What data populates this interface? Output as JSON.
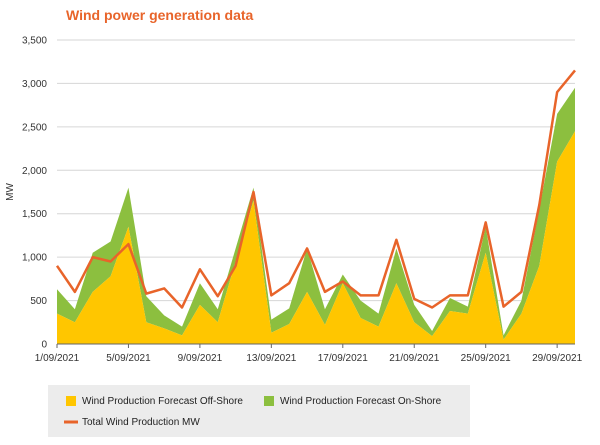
{
  "chart_data": {
    "type": "area",
    "title": "Wind power generation data",
    "ylabel": "MW",
    "xlabel": "",
    "ylim": [
      0,
      3500
    ],
    "yticks": [
      0,
      500,
      1000,
      1500,
      2000,
      2500,
      3000,
      3500
    ],
    "ytick_labels": [
      "0",
      "500",
      "1,000",
      "1,500",
      "2,000",
      "2,500",
      "3,000",
      "3,500"
    ],
    "xlim": [
      "2021-09-01",
      "2021-09-30"
    ],
    "xtick_days": [
      1,
      5,
      9,
      13,
      17,
      21,
      25,
      29
    ],
    "xtick_labels": [
      "1/09/2021",
      "5/09/2021",
      "9/09/2021",
      "13/09/2021",
      "17/09/2021",
      "21/09/2021",
      "25/09/2021",
      "29/09/2021"
    ],
    "grid": "horizontal",
    "legend_position": "bottom",
    "colors": {
      "offshore": "#ffc600",
      "onshore": "#8cbf3f",
      "total": "#e8642a",
      "title": "#e8642a",
      "legend_bg": "#ececec",
      "grid": "#d6d6d6"
    },
    "x": [
      "2021-09-01",
      "2021-09-02",
      "2021-09-03",
      "2021-09-04",
      "2021-09-05",
      "2021-09-06",
      "2021-09-07",
      "2021-09-08",
      "2021-09-09",
      "2021-09-10",
      "2021-09-11",
      "2021-09-12",
      "2021-09-13",
      "2021-09-14",
      "2021-09-15",
      "2021-09-16",
      "2021-09-17",
      "2021-09-18",
      "2021-09-19",
      "2021-09-20",
      "2021-09-21",
      "2021-09-22",
      "2021-09-23",
      "2021-09-24",
      "2021-09-25",
      "2021-09-26",
      "2021-09-27",
      "2021-09-28",
      "2021-09-29",
      "2021-09-30"
    ],
    "series": [
      {
        "name": "Wind Production Forecast Off-Shore",
        "kind": "area",
        "values": [
          350,
          250,
          600,
          780,
          1350,
          250,
          180,
          100,
          450,
          250,
          950,
          1650,
          130,
          230,
          600,
          220,
          700,
          300,
          200,
          700,
          250,
          90,
          380,
          350,
          1050,
          50,
          350,
          900,
          2100,
          2450
        ]
      },
      {
        "name": "Wind Production Forecast On-Shore",
        "kind": "area",
        "values": [
          280,
          150,
          450,
          400,
          450,
          300,
          150,
          100,
          250,
          150,
          150,
          150,
          150,
          180,
          500,
          180,
          100,
          200,
          150,
          400,
          200,
          60,
          150,
          80,
          300,
          50,
          150,
          650,
          550,
          500
        ]
      },
      {
        "name": "Total Wind Production MW",
        "kind": "line",
        "values": [
          900,
          600,
          1000,
          950,
          1150,
          580,
          640,
          420,
          860,
          550,
          900,
          1750,
          560,
          700,
          1100,
          600,
          720,
          560,
          560,
          1200,
          520,
          420,
          560,
          560,
          1400,
          430,
          600,
          1600,
          2900,
          3150
        ]
      }
    ],
    "legend": [
      {
        "label": "Wind Production Forecast Off-Shore",
        "kind": "area",
        "series": 0
      },
      {
        "label": "Wind Production Forecast On-Shore",
        "kind": "area",
        "series": 1
      },
      {
        "label": "Total Wind Production MW",
        "kind": "line",
        "series": 2
      }
    ]
  }
}
